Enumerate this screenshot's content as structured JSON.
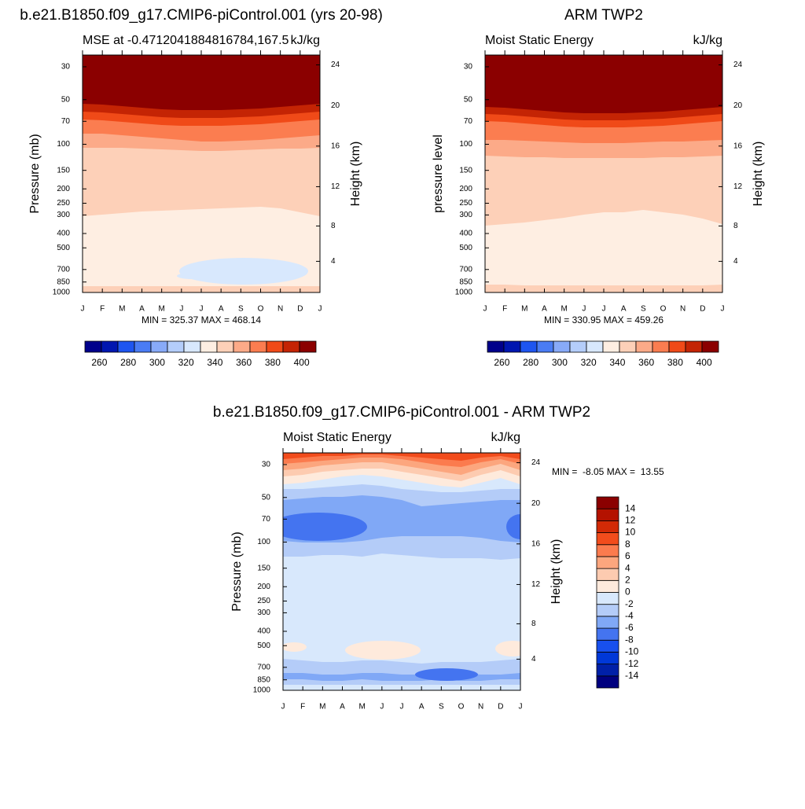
{
  "chart_data": [
    {
      "type": "contour",
      "title": "b.e21.B1850.f09_g17.CMIP6-piControl.001 (yrs 20-98)",
      "subtitle_left": "MSE at -0.4712041884816784,167.5",
      "subtitle_right": "kJ/kg",
      "ylabel": "Pressure (mb)",
      "y2label": "Height (km)",
      "stats": "MIN = 325.37 MAX = 468.14",
      "categories": [
        "J",
        "F",
        "M",
        "A",
        "M",
        "J",
        "J",
        "A",
        "S",
        "O",
        "N",
        "D",
        "J"
      ],
      "ylim": [
        1000,
        25
      ],
      "yscale": "log",
      "yticks": [
        30,
        50,
        70,
        100,
        150,
        200,
        250,
        300,
        400,
        500,
        700,
        850,
        1000
      ],
      "y2ticks": [
        4,
        8,
        12,
        16,
        20,
        24
      ],
      "colorbar": {
        "orientation": "horizontal",
        "levels": [
          260,
          280,
          300,
          320,
          340,
          360,
          380,
          400
        ],
        "colors": [
          "#00008b",
          "#0016b0",
          "#1e55f0",
          "#4a7cf4",
          "#88aaf8",
          "#b4cdfa",
          "#d8e8fd",
          "#feeee2",
          "#fdd0b8",
          "#fcaa88",
          "#fb7d50",
          "#f04a18",
          "#c42404",
          "#8b0000"
        ]
      }
    },
    {
      "type": "contour",
      "title": "ARM TWP2",
      "subtitle_left": "Moist Static Energy",
      "subtitle_right": "kJ/kg",
      "ylabel": "pressure level",
      "y2label": "Height (km)",
      "stats": "MIN = 330.95 MAX = 459.26",
      "categories": [
        "J",
        "F",
        "M",
        "A",
        "M",
        "J",
        "J",
        "A",
        "S",
        "O",
        "N",
        "D",
        "J"
      ],
      "ylim": [
        1000,
        25
      ],
      "yscale": "log",
      "yticks": [
        30,
        50,
        70,
        100,
        150,
        200,
        250,
        300,
        400,
        500,
        700,
        850,
        1000
      ],
      "y2ticks": [
        4,
        8,
        12,
        16,
        20,
        24
      ],
      "colorbar": {
        "orientation": "horizontal",
        "levels": [
          260,
          280,
          300,
          320,
          340,
          360,
          380,
          400
        ],
        "colors": [
          "#00008b",
          "#0016b0",
          "#1e55f0",
          "#4a7cf4",
          "#88aaf8",
          "#b4cdfa",
          "#d8e8fd",
          "#feeee2",
          "#fdd0b8",
          "#fcaa88",
          "#fb7d50",
          "#f04a18",
          "#c42404",
          "#8b0000"
        ]
      }
    },
    {
      "type": "contour",
      "title": "b.e21.B1850.f09_g17.CMIP6-piControl.001 - ARM TWP2",
      "subtitle_left": "Moist Static Energy",
      "subtitle_right": "kJ/kg",
      "ylabel": "Pressure (mb)",
      "y2label": "Height (km)",
      "stats": "MIN =  -8.05 MAX =  13.55",
      "categories": [
        "J",
        "F",
        "M",
        "A",
        "M",
        "J",
        "J",
        "A",
        "S",
        "O",
        "N",
        "D",
        "J"
      ],
      "ylim": [
        1000,
        25
      ],
      "yscale": "log",
      "yticks": [
        30,
        50,
        70,
        100,
        150,
        200,
        250,
        300,
        400,
        500,
        700,
        850,
        1000
      ],
      "y2ticks": [
        4,
        8,
        12,
        16,
        20,
        24
      ],
      "colorbar": {
        "orientation": "vertical",
        "levels": [
          -14,
          -12,
          -10,
          -8,
          -6,
          -4,
          -2,
          0,
          2,
          4,
          6,
          8,
          10,
          12,
          14
        ],
        "colors": [
          "#00007f",
          "#0020a8",
          "#0038d8",
          "#1850ee",
          "#4474f0",
          "#80a8f6",
          "#b4ccf8",
          "#d8e8fc",
          "#feeadc",
          "#fdcbb0",
          "#fca67e",
          "#fb7b4e",
          "#f24c1c",
          "#d22a06",
          "#b41200",
          "#8b0000"
        ]
      }
    }
  ]
}
